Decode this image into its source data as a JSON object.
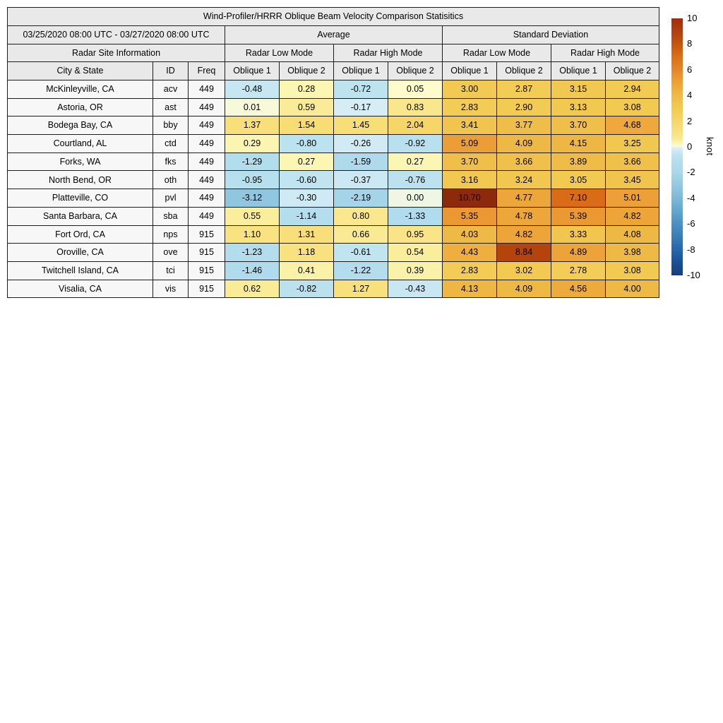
{
  "chart_data": {
    "type": "heatmap",
    "title": "Wind-Profiler/HRRR Oblique Beam Velocity Comparison Statisitics",
    "date_range": "03/25/2020 08:00 UTC - 03/27/2020 08:00 UTC",
    "site_info_header": "Radar Site Information",
    "column_groups": [
      "Average",
      "Standard Deviation"
    ],
    "mode_headers": [
      "Radar Low Mode",
      "Radar High Mode",
      "Radar Low Mode",
      "Radar High Mode"
    ],
    "columns": [
      "City & State",
      "ID",
      "Freq",
      "Oblique 1",
      "Oblique 2",
      "Oblique 1",
      "Oblique 2",
      "Oblique 1",
      "Oblique 2",
      "Oblique 1",
      "Oblique 2"
    ],
    "rows": [
      {
        "city": "McKinleyville, CA",
        "id": "acv",
        "freq": "449",
        "values": [
          -0.48,
          0.28,
          -0.72,
          0.05,
          3.0,
          2.87,
          3.15,
          2.94
        ]
      },
      {
        "city": "Astoria, OR",
        "id": "ast",
        "freq": "449",
        "values": [
          0.01,
          0.59,
          -0.17,
          0.83,
          2.83,
          2.9,
          3.13,
          3.08
        ]
      },
      {
        "city": "Bodega Bay, CA",
        "id": "bby",
        "freq": "449",
        "values": [
          1.37,
          1.54,
          1.45,
          2.04,
          3.41,
          3.77,
          3.7,
          4.68
        ]
      },
      {
        "city": "Courtland, AL",
        "id": "ctd",
        "freq": "449",
        "values": [
          0.29,
          -0.8,
          -0.26,
          -0.92,
          5.09,
          4.09,
          4.15,
          3.25
        ]
      },
      {
        "city": "Forks, WA",
        "id": "fks",
        "freq": "449",
        "values": [
          -1.29,
          0.27,
          -1.59,
          0.27,
          3.7,
          3.66,
          3.89,
          3.66
        ]
      },
      {
        "city": "North Bend, OR",
        "id": "oth",
        "freq": "449",
        "values": [
          -0.95,
          -0.6,
          -0.37,
          -0.76,
          3.16,
          3.24,
          3.05,
          3.45
        ]
      },
      {
        "city": "Platteville, CO",
        "id": "pvl",
        "freq": "449",
        "values": [
          -3.12,
          -0.3,
          -2.19,
          0.0,
          10.7,
          4.77,
          7.1,
          5.01
        ]
      },
      {
        "city": "Santa Barbara, CA",
        "id": "sba",
        "freq": "449",
        "values": [
          0.55,
          -1.14,
          0.8,
          -1.33,
          5.35,
          4.78,
          5.39,
          4.82
        ]
      },
      {
        "city": "Fort Ord, CA",
        "id": "nps",
        "freq": "915",
        "values": [
          1.1,
          1.31,
          0.66,
          0.95,
          4.03,
          4.82,
          3.33,
          4.08
        ]
      },
      {
        "city": "Oroville, CA",
        "id": "ove",
        "freq": "915",
        "values": [
          -1.23,
          1.18,
          -0.61,
          0.54,
          4.43,
          8.84,
          4.89,
          3.98
        ]
      },
      {
        "city": "Twitchell Island, CA",
        "id": "tci",
        "freq": "915",
        "values": [
          -1.46,
          0.41,
          -1.22,
          0.39,
          2.83,
          3.02,
          2.78,
          3.08
        ]
      },
      {
        "city": "Visalia, CA",
        "id": "vis",
        "freq": "915",
        "values": [
          0.62,
          -0.82,
          1.27,
          -0.43,
          4.13,
          4.09,
          4.56,
          4.0
        ]
      }
    ],
    "colorbar": {
      "label": "knot",
      "min": -10,
      "max": 10,
      "ticks": [
        10,
        8,
        6,
        4,
        2,
        0,
        -2,
        -4,
        -6,
        -8,
        -10
      ],
      "anchors": [
        [
          -10.7,
          "#0d3668"
        ],
        [
          -10.0,
          "#12407e"
        ],
        [
          -9.0,
          "#1a4f94"
        ],
        [
          -8.0,
          "#2767ac"
        ],
        [
          -7.0,
          "#3a7cb8"
        ],
        [
          -6.0,
          "#4a90c4"
        ],
        [
          -5.0,
          "#62a5d0"
        ],
        [
          -4.0,
          "#7db8da"
        ],
        [
          -3.0,
          "#93c8e1"
        ],
        [
          -2.5,
          "#9dcfe5"
        ],
        [
          -2.0,
          "#aad7ea"
        ],
        [
          -1.5,
          "#afdbec"
        ],
        [
          -1.0,
          "#b6dfee"
        ],
        [
          -0.6,
          "#c0e4f0"
        ],
        [
          -0.3,
          "#cfeaf4"
        ],
        [
          -0.02,
          "#e0f1f7"
        ],
        [
          0.02,
          "#fefcd0"
        ],
        [
          0.3,
          "#fcf5b1"
        ],
        [
          0.6,
          "#faeb97"
        ],
        [
          1.0,
          "#f9e385"
        ],
        [
          1.5,
          "#f8dd75"
        ],
        [
          2.0,
          "#f6d768"
        ],
        [
          2.5,
          "#f4d05e"
        ],
        [
          3.0,
          "#f2ca52"
        ],
        [
          3.5,
          "#f0c34c"
        ],
        [
          4.0,
          "#eeba45"
        ],
        [
          4.5,
          "#eead3e"
        ],
        [
          5.0,
          "#eda037"
        ],
        [
          5.5,
          "#ea9530"
        ],
        [
          6.0,
          "#e4872a"
        ],
        [
          7.0,
          "#dc6f18"
        ],
        [
          8.0,
          "#c6550f"
        ],
        [
          9.0,
          "#b0400c"
        ],
        [
          10.0,
          "#9e2e0e"
        ],
        [
          10.7,
          "#8e2a0c"
        ]
      ]
    }
  }
}
